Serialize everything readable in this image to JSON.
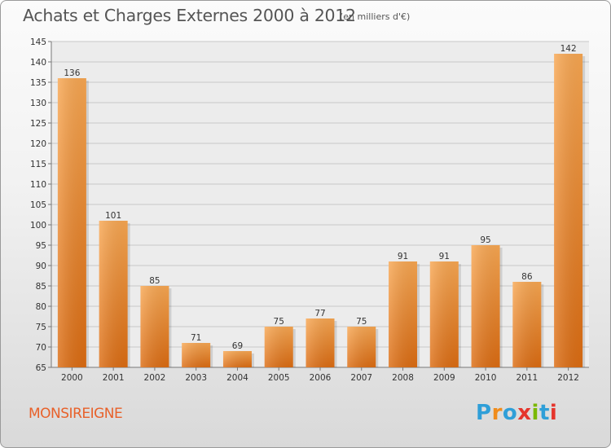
{
  "header": {
    "title": "Achats et Charges Externes 2000 à 2012",
    "subtitle": "(en milliers d'€)"
  },
  "footer": {
    "commune": "MONSIREIGNE",
    "logo_letters": [
      "P",
      "r",
      "o",
      "x",
      "i",
      "t",
      "i"
    ],
    "logo_colors": [
      "#2f9fd8",
      "#f08c1c",
      "#2f9fd8",
      "#e5352c",
      "#7ab800",
      "#2f9fd8",
      "#e5352c"
    ]
  },
  "chart_data": {
    "type": "bar",
    "categories": [
      "2000",
      "2001",
      "2002",
      "2003",
      "2004",
      "2005",
      "2006",
      "2007",
      "2008",
      "2009",
      "2010",
      "2011",
      "2012"
    ],
    "values": [
      136,
      101,
      85,
      71,
      69,
      75,
      77,
      75,
      91,
      91,
      95,
      86,
      142
    ],
    "ylim": [
      65,
      145
    ],
    "yticks": [
      65,
      70,
      75,
      80,
      85,
      90,
      95,
      100,
      105,
      110,
      115,
      120,
      125,
      130,
      135,
      140,
      145
    ],
    "grid": true,
    "bar_color": "#f0902c"
  }
}
